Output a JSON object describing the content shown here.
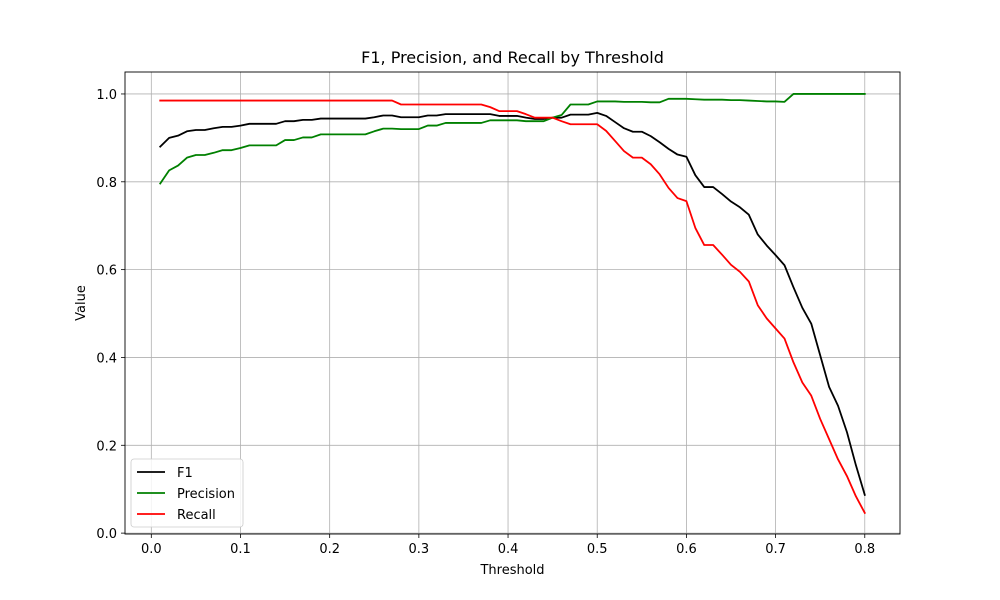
{
  "chart_data": {
    "type": "line",
    "title": "F1, Precision, and Recall by Threshold",
    "xlabel": "Threshold",
    "ylabel": "Value",
    "xlim": [
      -0.0295,
      0.8395
    ],
    "ylim": [
      -0.002,
      1.05
    ],
    "xticks": [
      0.0,
      0.1,
      0.2,
      0.3,
      0.4,
      0.5,
      0.6,
      0.7,
      0.8
    ],
    "xtick_labels": [
      "0.0",
      "0.1",
      "0.2",
      "0.3",
      "0.4",
      "0.5",
      "0.6",
      "0.7",
      "0.8"
    ],
    "yticks": [
      0.0,
      0.2,
      0.4,
      0.6,
      0.8,
      1.0
    ],
    "ytick_labels": [
      "0.0",
      "0.2",
      "0.4",
      "0.6",
      "0.8",
      "1.0"
    ],
    "grid": true,
    "legend_position": "lower-left",
    "x": [
      0.01,
      0.02,
      0.03,
      0.04,
      0.05,
      0.06,
      0.07,
      0.08,
      0.09,
      0.1,
      0.11,
      0.12,
      0.13,
      0.14,
      0.15,
      0.16,
      0.17,
      0.18,
      0.19,
      0.2,
      0.21,
      0.22,
      0.23,
      0.24,
      0.25,
      0.26,
      0.27,
      0.28,
      0.29,
      0.3,
      0.31,
      0.32,
      0.33,
      0.34,
      0.35,
      0.36,
      0.37,
      0.38,
      0.39,
      0.4,
      0.41,
      0.42,
      0.43,
      0.44,
      0.45,
      0.46,
      0.47,
      0.48,
      0.49,
      0.5,
      0.51,
      0.52,
      0.53,
      0.54,
      0.55,
      0.56,
      0.57,
      0.58,
      0.59,
      0.6,
      0.61,
      0.62,
      0.63,
      0.64,
      0.65,
      0.66,
      0.67,
      0.68,
      0.69,
      0.7,
      0.71,
      0.72,
      0.73,
      0.74,
      0.75,
      0.76,
      0.77,
      0.78,
      0.79,
      0.8
    ],
    "series": [
      {
        "name": "F1",
        "color": "#000000",
        "values": [
          0.88,
          0.9,
          0.905,
          0.915,
          0.918,
          0.918,
          0.922,
          0.925,
          0.925,
          0.928,
          0.932,
          0.932,
          0.932,
          0.932,
          0.938,
          0.938,
          0.941,
          0.941,
          0.944,
          0.944,
          0.944,
          0.944,
          0.944,
          0.944,
          0.947,
          0.951,
          0.951,
          0.947,
          0.947,
          0.947,
          0.951,
          0.951,
          0.954,
          0.954,
          0.954,
          0.954,
          0.954,
          0.954,
          0.95,
          0.95,
          0.95,
          0.946,
          0.943,
          0.943,
          0.946,
          0.946,
          0.953,
          0.953,
          0.953,
          0.957,
          0.95,
          0.936,
          0.922,
          0.914,
          0.914,
          0.904,
          0.89,
          0.875,
          0.862,
          0.857,
          0.815,
          0.788,
          0.788,
          0.772,
          0.755,
          0.742,
          0.725,
          0.68,
          0.655,
          0.633,
          0.61,
          0.56,
          0.513,
          0.477,
          0.405,
          0.333,
          0.29,
          0.23,
          0.155,
          0.087
        ]
      },
      {
        "name": "Precision",
        "color": "#008000",
        "values": [
          0.796,
          0.826,
          0.837,
          0.855,
          0.861,
          0.861,
          0.866,
          0.872,
          0.872,
          0.877,
          0.883,
          0.883,
          0.883,
          0.883,
          0.895,
          0.895,
          0.901,
          0.901,
          0.908,
          0.908,
          0.908,
          0.908,
          0.908,
          0.908,
          0.915,
          0.921,
          0.921,
          0.92,
          0.92,
          0.92,
          0.928,
          0.928,
          0.934,
          0.934,
          0.934,
          0.934,
          0.934,
          0.94,
          0.94,
          0.94,
          0.94,
          0.938,
          0.938,
          0.938,
          0.946,
          0.952,
          0.976,
          0.976,
          0.976,
          0.983,
          0.983,
          0.983,
          0.982,
          0.982,
          0.982,
          0.981,
          0.981,
          0.989,
          0.989,
          0.989,
          0.988,
          0.987,
          0.987,
          0.987,
          0.986,
          0.986,
          0.985,
          0.984,
          0.983,
          0.983,
          0.982,
          1.0,
          1.0,
          1.0,
          1.0,
          1.0,
          1.0,
          1.0,
          1.0,
          1.0
        ]
      },
      {
        "name": "Recall",
        "color": "#ff0000",
        "values": [
          0.985,
          0.985,
          0.985,
          0.985,
          0.985,
          0.985,
          0.985,
          0.985,
          0.985,
          0.985,
          0.985,
          0.985,
          0.985,
          0.985,
          0.985,
          0.985,
          0.985,
          0.985,
          0.985,
          0.985,
          0.985,
          0.985,
          0.985,
          0.985,
          0.985,
          0.985,
          0.985,
          0.976,
          0.976,
          0.976,
          0.976,
          0.976,
          0.976,
          0.976,
          0.976,
          0.976,
          0.976,
          0.97,
          0.961,
          0.961,
          0.961,
          0.954,
          0.946,
          0.946,
          0.946,
          0.938,
          0.931,
          0.931,
          0.931,
          0.931,
          0.916,
          0.893,
          0.87,
          0.855,
          0.855,
          0.84,
          0.817,
          0.786,
          0.763,
          0.756,
          0.695,
          0.656,
          0.656,
          0.634,
          0.611,
          0.595,
          0.573,
          0.519,
          0.489,
          0.466,
          0.443,
          0.389,
          0.343,
          0.313,
          0.26,
          0.214,
          0.168,
          0.13,
          0.084,
          0.046
        ]
      }
    ]
  }
}
